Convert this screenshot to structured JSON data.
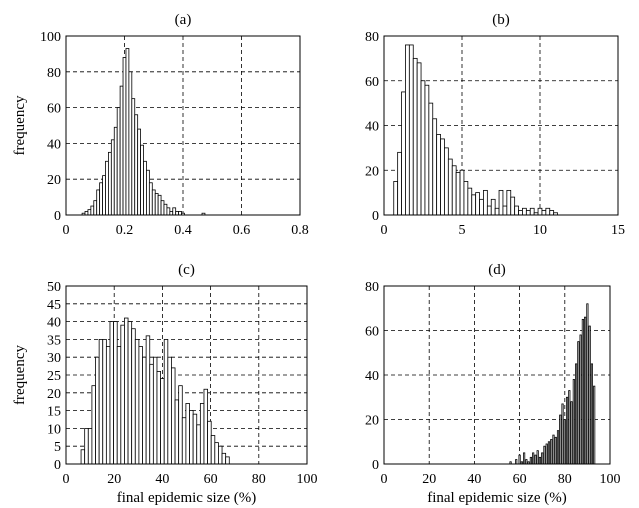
{
  "chart_data": [
    {
      "type": "bar",
      "title": "(a)",
      "xlabel": "",
      "ylabel": "frequency",
      "xlim": [
        0,
        0.8
      ],
      "ylim": [
        0,
        100
      ],
      "xticks": [
        "0",
        "0.2",
        "0.4",
        "0.6",
        "0.8"
      ],
      "yticks": [
        "0",
        "20",
        "40",
        "60",
        "80",
        "100"
      ],
      "grid": true,
      "bar_width": 0.01,
      "x": [
        0.06,
        0.07,
        0.08,
        0.09,
        0.1,
        0.11,
        0.12,
        0.13,
        0.14,
        0.15,
        0.16,
        0.17,
        0.18,
        0.19,
        0.2,
        0.21,
        0.22,
        0.23,
        0.24,
        0.25,
        0.26,
        0.27,
        0.28,
        0.29,
        0.3,
        0.31,
        0.32,
        0.33,
        0.34,
        0.35,
        0.36,
        0.37,
        0.38,
        0.39,
        0.4,
        0.47
      ],
      "values": [
        1,
        2,
        3,
        5,
        8,
        14,
        18,
        22,
        30,
        35,
        42,
        49,
        60,
        72,
        88,
        93,
        80,
        65,
        56,
        48,
        39,
        30,
        25,
        18,
        14,
        12,
        11,
        8,
        6,
        4,
        2,
        4,
        2,
        2,
        1,
        1
      ]
    },
    {
      "type": "bar",
      "title": "(b)",
      "xlabel": "",
      "ylabel": "",
      "xlim": [
        0,
        15
      ],
      "ylim": [
        0,
        80
      ],
      "xticks": [
        "0",
        "5",
        "10",
        "15"
      ],
      "yticks": [
        "0",
        "20",
        "40",
        "60",
        "80"
      ],
      "grid": true,
      "bar_width": 0.25,
      "x": [
        0.75,
        1.0,
        1.25,
        1.5,
        1.75,
        2.0,
        2.25,
        2.5,
        2.75,
        3.0,
        3.25,
        3.5,
        3.75,
        4.0,
        4.25,
        4.5,
        4.75,
        5.0,
        5.25,
        5.5,
        5.75,
        6.0,
        6.25,
        6.5,
        6.75,
        7.0,
        7.25,
        7.5,
        7.75,
        8.0,
        8.25,
        8.5,
        8.75,
        9.0,
        9.25,
        9.5,
        9.75,
        10.0,
        10.25,
        10.5,
        10.75,
        11.0
      ],
      "values": [
        15,
        28,
        55,
        76,
        76,
        70,
        68,
        60,
        58,
        50,
        43,
        36,
        34,
        30,
        25,
        22,
        19,
        20,
        15,
        12,
        9,
        10,
        7,
        11,
        4,
        7,
        3,
        11,
        4,
        11,
        8,
        4,
        2,
        3,
        2,
        3,
        1,
        3,
        2,
        3,
        2,
        1
      ]
    },
    {
      "type": "bar",
      "title": "(c)",
      "xlabel": "final epidemic size (%)",
      "ylabel": "frequency",
      "xlim": [
        0,
        100
      ],
      "ylim": [
        0,
        50
      ],
      "xticks": [
        "0",
        "20",
        "40",
        "60",
        "80",
        "100"
      ],
      "yticks": [
        "0",
        "5",
        "10",
        "15",
        "20",
        "25",
        "30",
        "35",
        "40",
        "45",
        "50"
      ],
      "grid": true,
      "bar_width": 1.5,
      "x": [
        7,
        8.5,
        10,
        11.5,
        13,
        14.5,
        16,
        17.5,
        19,
        20.5,
        22,
        23.5,
        25,
        26.5,
        28,
        29.5,
        31,
        32.5,
        34,
        35.5,
        37,
        38.5,
        40,
        41.5,
        43,
        44.5,
        46,
        47.5,
        49,
        50.5,
        52,
        53.5,
        55,
        56.5,
        58,
        59.5,
        61,
        62.5,
        64,
        65.5,
        67
      ],
      "values": [
        4,
        10,
        10,
        22,
        30,
        35,
        35,
        33,
        40,
        40,
        33,
        39,
        41,
        40,
        38,
        35,
        33,
        30,
        36,
        28,
        30,
        26,
        24,
        35,
        30,
        27,
        18,
        22,
        13,
        17,
        15,
        14,
        11,
        17,
        21,
        12,
        8,
        6,
        5,
        3,
        2
      ]
    },
    {
      "type": "bar",
      "title": "(d)",
      "xlabel": "final epidemic size (%)",
      "ylabel": "",
      "xlim": [
        0,
        100
      ],
      "ylim": [
        0,
        80
      ],
      "xticks": [
        "0",
        "20",
        "40",
        "60",
        "80",
        "100"
      ],
      "yticks": [
        "0",
        "20",
        "40",
        "60",
        "80"
      ],
      "grid": true,
      "bar_width": 0.6,
      "x": [
        56,
        58.5,
        60,
        61,
        62,
        63,
        64,
        65,
        66,
        67,
        68,
        69,
        70,
        71,
        72,
        73,
        74,
        75,
        76,
        77,
        78,
        79,
        80,
        81,
        82,
        83,
        84,
        85,
        86,
        87,
        88,
        89,
        90,
        91,
        92,
        93
      ],
      "values": [
        1,
        2,
        4,
        1,
        5,
        2,
        1,
        3,
        5,
        4,
        6,
        3,
        5,
        8,
        9,
        10,
        11,
        13,
        12,
        15,
        22,
        27,
        20,
        30,
        33,
        28,
        38,
        45,
        55,
        58,
        65,
        66,
        72,
        62,
        45,
        35
      ]
    }
  ]
}
